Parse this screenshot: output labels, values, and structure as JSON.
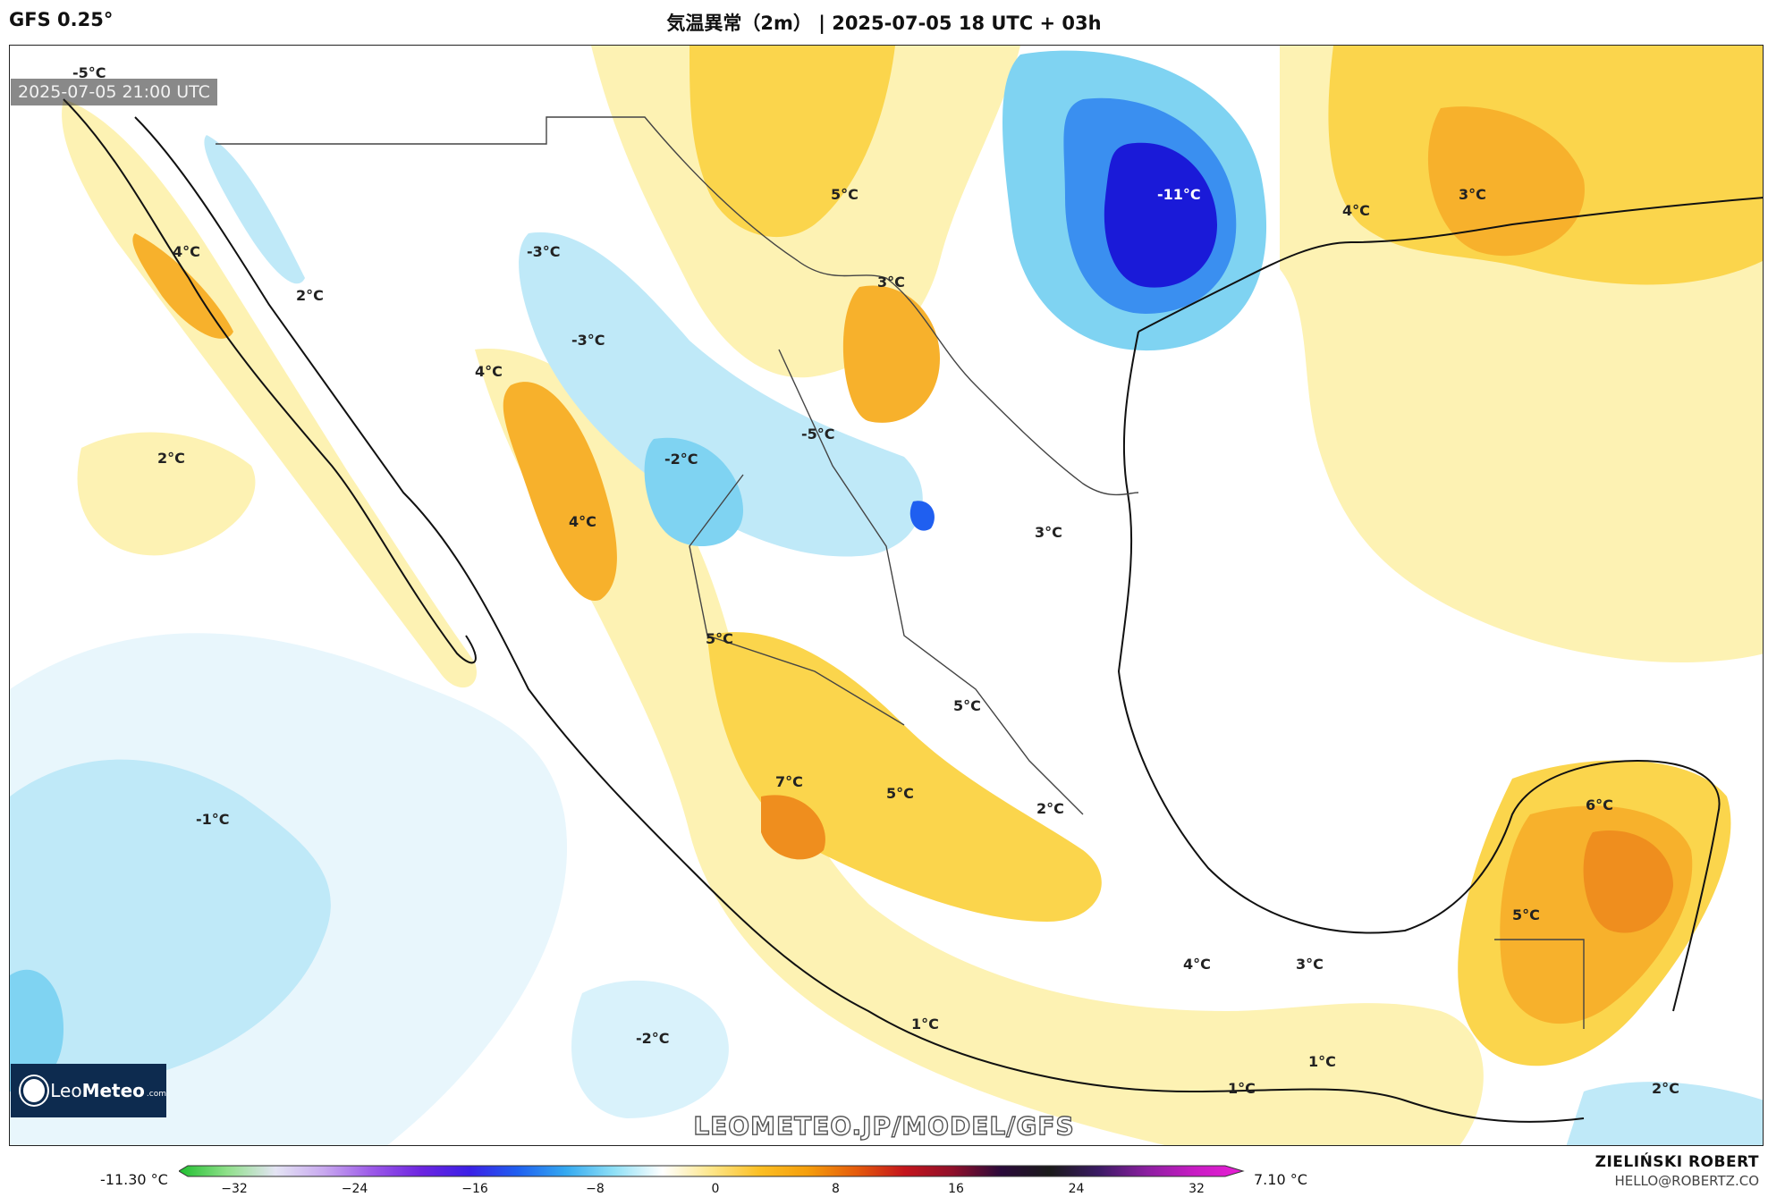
{
  "header": {
    "model": "GFS 0.25°",
    "title": "気温異常（2m） | 2025-07-05 18 UTC + 03h"
  },
  "map": {
    "valid_time": "2025-07-05 21:00 UTC",
    "watermark": "LEOMETEO.JP/MODEL/GFS",
    "logo": {
      "brand_light": "Leo",
      "brand_bold": "Meteo",
      "domain": ".com"
    },
    "labels": [
      {
        "text": "-5°C"
      },
      {
        "text": "4°C"
      },
      {
        "text": "2°C"
      },
      {
        "text": "-3°C"
      },
      {
        "text": "4°C"
      },
      {
        "text": "-3°C"
      },
      {
        "text": "2°C"
      },
      {
        "text": "5°C"
      },
      {
        "text": "3°C"
      },
      {
        "text": "-11°C"
      },
      {
        "text": "4°C"
      },
      {
        "text": "3°C"
      },
      {
        "text": "-5°C"
      },
      {
        "text": "-2°C"
      },
      {
        "text": "4°C"
      },
      {
        "text": "3°C"
      },
      {
        "text": "5°C"
      },
      {
        "text": "5°C"
      },
      {
        "text": "-1°C"
      },
      {
        "text": "7°C"
      },
      {
        "text": "5°C"
      },
      {
        "text": "2°C"
      },
      {
        "text": "6°C"
      },
      {
        "text": "5°C"
      },
      {
        "text": "4°C"
      },
      {
        "text": "3°C"
      },
      {
        "text": "1°C"
      },
      {
        "text": "-2°C"
      },
      {
        "text": "1°C"
      },
      {
        "text": "1°C"
      },
      {
        "text": "2°C"
      }
    ],
    "colors": {
      "light_yellow": "#fdf2b3",
      "yellow": "#fbd54c",
      "orange": "#f7b12c",
      "dark_orange": "#ef8e1e",
      "light_blue": "#cdeef9",
      "blue": "#7fd3f2",
      "deep_blue": "#2a3cf0",
      "navy": "#1a1ad8",
      "land_line": "#111111"
    }
  },
  "colorbar": {
    "min_label": "-11.30 °C",
    "max_label": "7.10 °C",
    "ticks": [
      "−32",
      "−24",
      "−16",
      "−8",
      "0",
      "8",
      "16",
      "24",
      "32"
    ],
    "stops": [
      "#1fbf2f",
      "#8fe08a",
      "#e4e4f4",
      "#c8a8ef",
      "#9b58e8",
      "#6d25e0",
      "#3b1fe6",
      "#1f5ff0",
      "#34a9f0",
      "#8fe0f6",
      "#ffffff",
      "#fde68a",
      "#fbbf24",
      "#f59e0b",
      "#e55b0b",
      "#c4151c",
      "#8f0f2a",
      "#2a0a3a",
      "#1a1a1a",
      "#3a1b63",
      "#8b1fa0",
      "#c81bc4",
      "#e81fd4"
    ]
  },
  "author": {
    "name": "ZIELIŃSKI ROBERT",
    "email": "HELLO@ROBERTZ.CO"
  }
}
